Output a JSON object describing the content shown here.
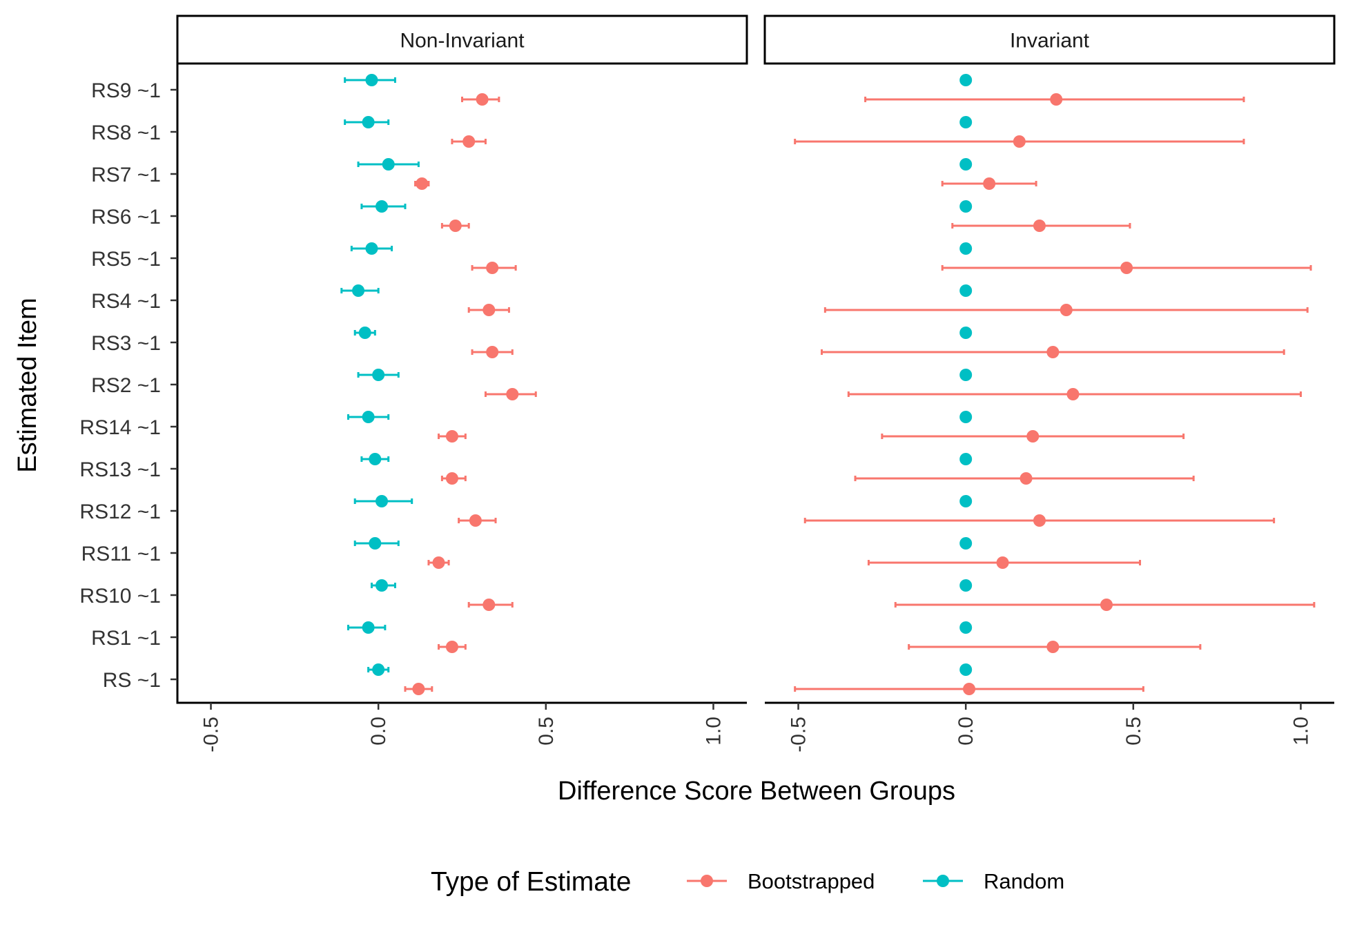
{
  "chart_data": {
    "type": "scatter",
    "subtype": "point-range / forest plot, faceted",
    "xlabel": "Difference Score Between Groups",
    "ylabel": "Estimated Item",
    "xlim": [
      -0.6,
      1.1
    ],
    "x_ticks": [
      -0.5,
      0.0,
      0.5,
      1.0
    ],
    "x_tick_labels": [
      "-0.5",
      "0.0",
      "0.5",
      "1.0"
    ],
    "categories": [
      "RS ~1",
      "RS1 ~1",
      "RS10 ~1",
      "RS11 ~1",
      "RS12 ~1",
      "RS13 ~1",
      "RS14 ~1",
      "RS2 ~1",
      "RS3 ~1",
      "RS4 ~1",
      "RS5 ~1",
      "RS6 ~1",
      "RS7 ~1",
      "RS8 ~1",
      "RS9 ~1"
    ],
    "grid": false,
    "legend": {
      "title": "Type of Estimate",
      "position": "bottom",
      "entries": [
        {
          "name": "Bootstrapped",
          "color": "#F8766D"
        },
        {
          "name": "Random",
          "color": "#00BFC4"
        }
      ]
    },
    "panels": [
      {
        "title": "Non-Invariant",
        "series": [
          {
            "name": "Bootstrapped",
            "color": "#F8766D",
            "points": [
              {
                "item": "RS ~1",
                "est": 0.12,
                "lo": 0.08,
                "hi": 0.16
              },
              {
                "item": "RS1 ~1",
                "est": 0.22,
                "lo": 0.18,
                "hi": 0.26
              },
              {
                "item": "RS10 ~1",
                "est": 0.33,
                "lo": 0.27,
                "hi": 0.4
              },
              {
                "item": "RS11 ~1",
                "est": 0.18,
                "lo": 0.15,
                "hi": 0.21
              },
              {
                "item": "RS12 ~1",
                "est": 0.29,
                "lo": 0.24,
                "hi": 0.35
              },
              {
                "item": "RS13 ~1",
                "est": 0.22,
                "lo": 0.19,
                "hi": 0.26
              },
              {
                "item": "RS14 ~1",
                "est": 0.22,
                "lo": 0.18,
                "hi": 0.26
              },
              {
                "item": "RS2 ~1",
                "est": 0.4,
                "lo": 0.32,
                "hi": 0.47
              },
              {
                "item": "RS3 ~1",
                "est": 0.34,
                "lo": 0.28,
                "hi": 0.4
              },
              {
                "item": "RS4 ~1",
                "est": 0.33,
                "lo": 0.27,
                "hi": 0.39
              },
              {
                "item": "RS5 ~1",
                "est": 0.34,
                "lo": 0.28,
                "hi": 0.41
              },
              {
                "item": "RS6 ~1",
                "est": 0.23,
                "lo": 0.19,
                "hi": 0.27
              },
              {
                "item": "RS7 ~1",
                "est": 0.13,
                "lo": 0.11,
                "hi": 0.15
              },
              {
                "item": "RS8 ~1",
                "est": 0.27,
                "lo": 0.22,
                "hi": 0.32
              },
              {
                "item": "RS9 ~1",
                "est": 0.31,
                "lo": 0.25,
                "hi": 0.36
              }
            ]
          },
          {
            "name": "Random",
            "color": "#00BFC4",
            "points": [
              {
                "item": "RS ~1",
                "est": 0.0,
                "lo": -0.03,
                "hi": 0.03
              },
              {
                "item": "RS1 ~1",
                "est": -0.03,
                "lo": -0.09,
                "hi": 0.02
              },
              {
                "item": "RS10 ~1",
                "est": 0.01,
                "lo": -0.02,
                "hi": 0.05
              },
              {
                "item": "RS11 ~1",
                "est": -0.01,
                "lo": -0.07,
                "hi": 0.06
              },
              {
                "item": "RS12 ~1",
                "est": 0.01,
                "lo": -0.07,
                "hi": 0.1
              },
              {
                "item": "RS13 ~1",
                "est": -0.01,
                "lo": -0.05,
                "hi": 0.03
              },
              {
                "item": "RS14 ~1",
                "est": -0.03,
                "lo": -0.09,
                "hi": 0.03
              },
              {
                "item": "RS2 ~1",
                "est": 0.0,
                "lo": -0.06,
                "hi": 0.06
              },
              {
                "item": "RS3 ~1",
                "est": -0.04,
                "lo": -0.07,
                "hi": -0.01
              },
              {
                "item": "RS4 ~1",
                "est": -0.06,
                "lo": -0.11,
                "hi": 0.0
              },
              {
                "item": "RS5 ~1",
                "est": -0.02,
                "lo": -0.08,
                "hi": 0.04
              },
              {
                "item": "RS6 ~1",
                "est": 0.01,
                "lo": -0.05,
                "hi": 0.08
              },
              {
                "item": "RS7 ~1",
                "est": 0.03,
                "lo": -0.06,
                "hi": 0.12
              },
              {
                "item": "RS8 ~1",
                "est": -0.03,
                "lo": -0.1,
                "hi": 0.03
              },
              {
                "item": "RS9 ~1",
                "est": -0.02,
                "lo": -0.1,
                "hi": 0.05
              }
            ]
          }
        ]
      },
      {
        "title": "Invariant",
        "series": [
          {
            "name": "Bootstrapped",
            "color": "#F8766D",
            "points": [
              {
                "item": "RS ~1",
                "est": 0.01,
                "lo": -0.51,
                "hi": 0.53
              },
              {
                "item": "RS1 ~1",
                "est": 0.26,
                "lo": -0.17,
                "hi": 0.7
              },
              {
                "item": "RS10 ~1",
                "est": 0.42,
                "lo": -0.21,
                "hi": 1.04
              },
              {
                "item": "RS11 ~1",
                "est": 0.11,
                "lo": -0.29,
                "hi": 0.52
              },
              {
                "item": "RS12 ~1",
                "est": 0.22,
                "lo": -0.48,
                "hi": 0.92
              },
              {
                "item": "RS13 ~1",
                "est": 0.18,
                "lo": -0.33,
                "hi": 0.68
              },
              {
                "item": "RS14 ~1",
                "est": 0.2,
                "lo": -0.25,
                "hi": 0.65
              },
              {
                "item": "RS2 ~1",
                "est": 0.32,
                "lo": -0.35,
                "hi": 1.0
              },
              {
                "item": "RS3 ~1",
                "est": 0.26,
                "lo": -0.43,
                "hi": 0.95
              },
              {
                "item": "RS4 ~1",
                "est": 0.3,
                "lo": -0.42,
                "hi": 1.02
              },
              {
                "item": "RS5 ~1",
                "est": 0.48,
                "lo": -0.07,
                "hi": 1.03
              },
              {
                "item": "RS6 ~1",
                "est": 0.22,
                "lo": -0.04,
                "hi": 0.49
              },
              {
                "item": "RS7 ~1",
                "est": 0.07,
                "lo": -0.07,
                "hi": 0.21
              },
              {
                "item": "RS8 ~1",
                "est": 0.16,
                "lo": -0.51,
                "hi": 0.83
              },
              {
                "item": "RS9 ~1",
                "est": 0.27,
                "lo": -0.3,
                "hi": 0.83
              }
            ]
          },
          {
            "name": "Random",
            "color": "#00BFC4",
            "points": [
              {
                "item": "RS ~1",
                "est": 0.0,
                "lo": 0.0,
                "hi": 0.0
              },
              {
                "item": "RS1 ~1",
                "est": 0.0,
                "lo": 0.0,
                "hi": 0.0
              },
              {
                "item": "RS10 ~1",
                "est": 0.0,
                "lo": 0.0,
                "hi": 0.0
              },
              {
                "item": "RS11 ~1",
                "est": 0.0,
                "lo": 0.0,
                "hi": 0.0
              },
              {
                "item": "RS12 ~1",
                "est": 0.0,
                "lo": 0.0,
                "hi": 0.0
              },
              {
                "item": "RS13 ~1",
                "est": 0.0,
                "lo": 0.0,
                "hi": 0.0
              },
              {
                "item": "RS14 ~1",
                "est": 0.0,
                "lo": 0.0,
                "hi": 0.0
              },
              {
                "item": "RS2 ~1",
                "est": 0.0,
                "lo": 0.0,
                "hi": 0.0
              },
              {
                "item": "RS3 ~1",
                "est": 0.0,
                "lo": 0.0,
                "hi": 0.0
              },
              {
                "item": "RS4 ~1",
                "est": 0.0,
                "lo": 0.0,
                "hi": 0.0
              },
              {
                "item": "RS5 ~1",
                "est": 0.0,
                "lo": 0.0,
                "hi": 0.0
              },
              {
                "item": "RS6 ~1",
                "est": 0.0,
                "lo": 0.0,
                "hi": 0.0
              },
              {
                "item": "RS7 ~1",
                "est": 0.0,
                "lo": 0.0,
                "hi": 0.0
              },
              {
                "item": "RS8 ~1",
                "est": 0.0,
                "lo": 0.0,
                "hi": 0.0
              },
              {
                "item": "RS9 ~1",
                "est": 0.0,
                "lo": 0.0,
                "hi": 0.0
              }
            ]
          }
        ]
      }
    ]
  }
}
